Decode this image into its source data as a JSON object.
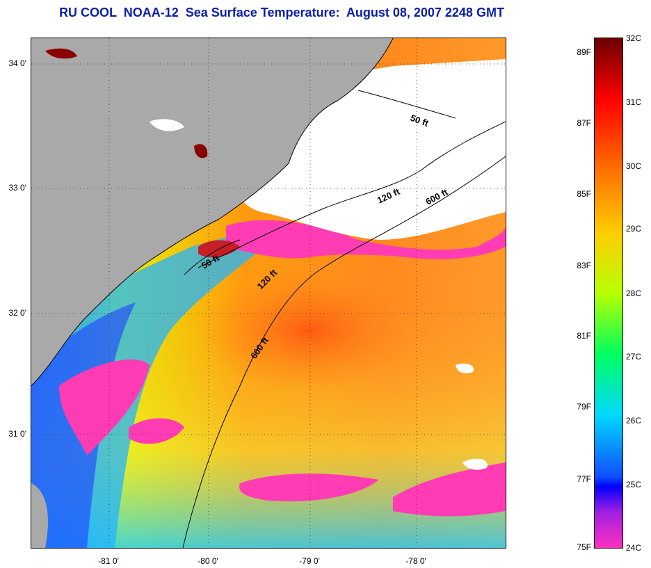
{
  "title": "RU COOL  NOAA-12  Sea Surface Temperature:  August 08, 2007 2248 GMT",
  "colors": {
    "land": "#a9a9a9",
    "cloud": "#ffffff",
    "title": "#0b1fa8"
  },
  "map": {
    "lat_labels": [
      "34 0'",
      "33 0'",
      "32 0'",
      "31 0'"
    ],
    "lon_labels": [
      "-81 0'",
      "-80 0'",
      "-79 0'",
      "-78 0'"
    ],
    "contours": [
      {
        "label": "50 ft"
      },
      {
        "label": "120 ft"
      },
      {
        "label": "600 ft"
      },
      {
        "label": "50 ft"
      },
      {
        "label": "120 ft"
      },
      {
        "label": "600 ft"
      }
    ]
  },
  "colorbar": {
    "fahrenheit": [
      "89F",
      "87F",
      "85F",
      "83F",
      "81F",
      "79F",
      "77F",
      "75F"
    ],
    "celsius": [
      "32C",
      "31C",
      "30C",
      "29C",
      "28C",
      "27C",
      "26C",
      "25C",
      "24C"
    ]
  }
}
